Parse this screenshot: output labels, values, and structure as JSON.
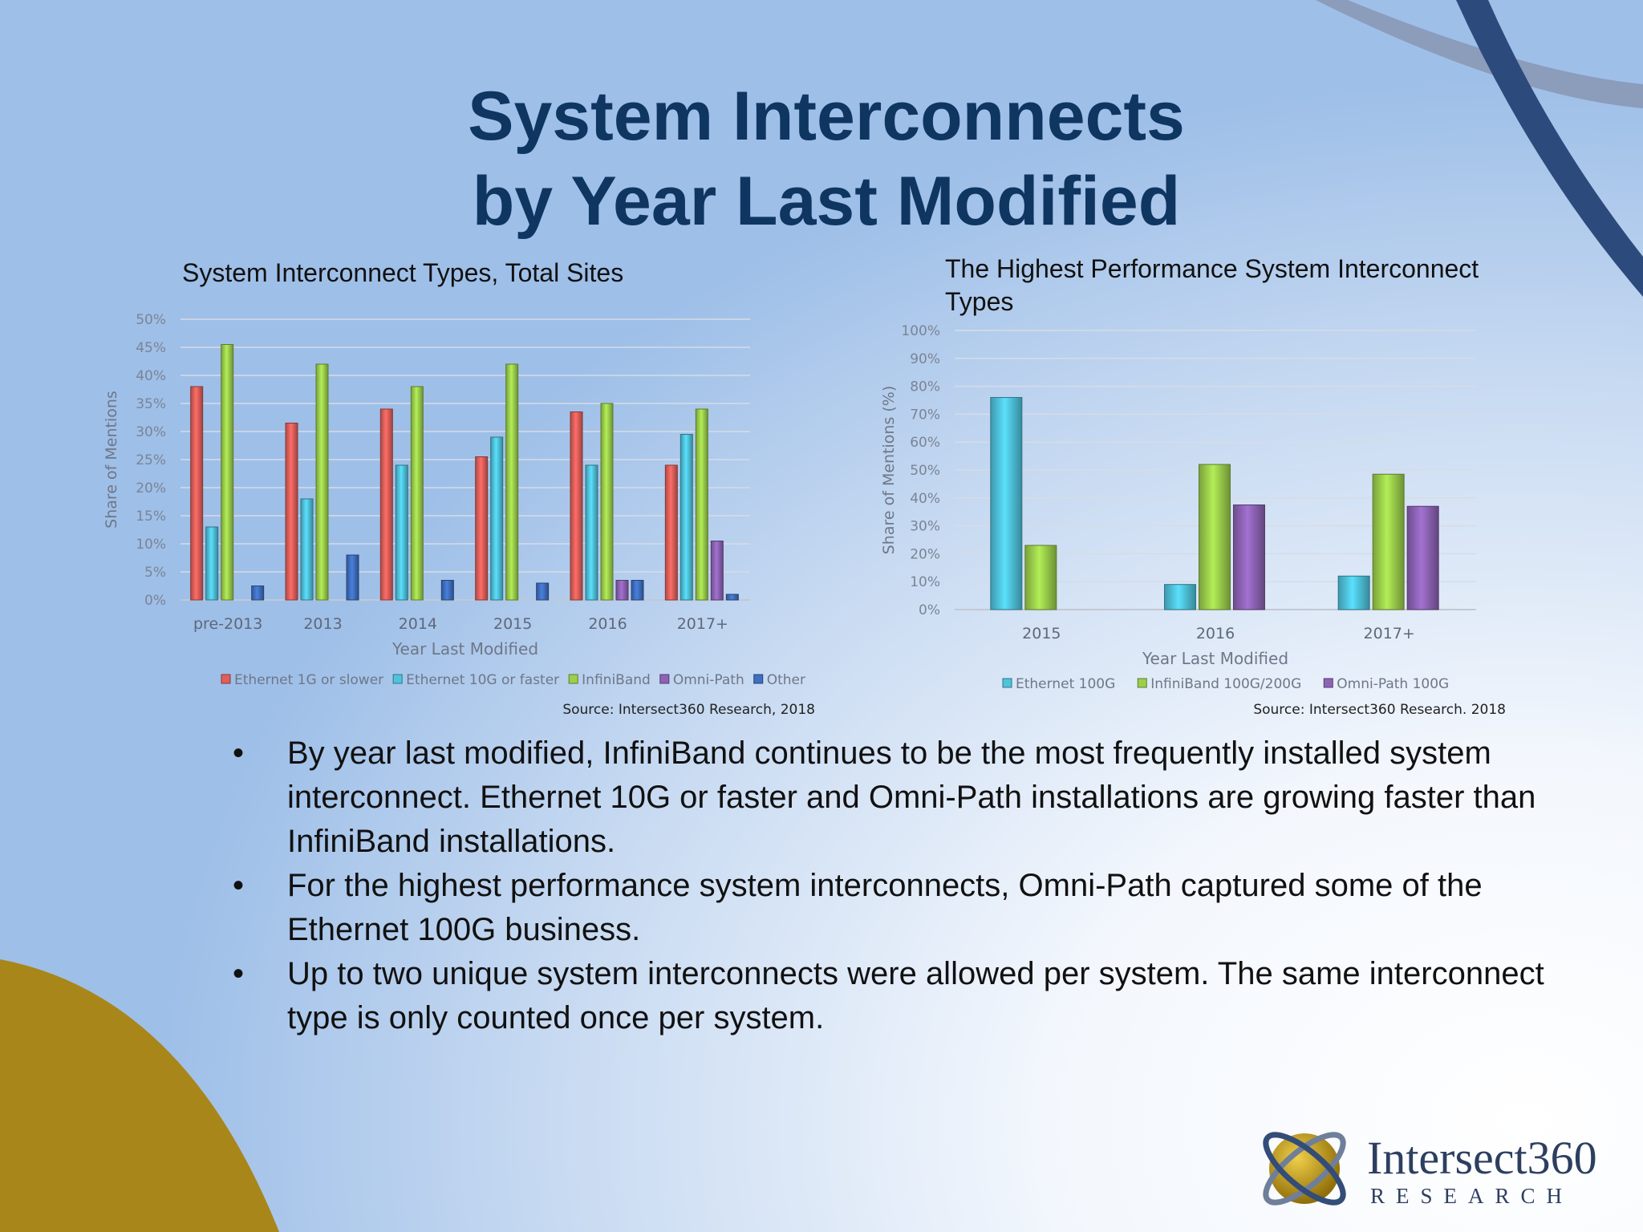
{
  "slide": {
    "title_line1": "System Interconnects",
    "title_line2": "by Year Last Modified",
    "bullet_char": "•",
    "bullets": [
      "By year last modified, InfiniBand continues to be the most frequently installed system interconnect. Ethernet 10G or faster and Omni-Path installations are growing faster than InfiniBand installations.",
      "For the highest performance system interconnects, Omni-Path captured some of the Ethernet 100G business.",
      "Up to two unique system interconnects were allowed per system. The same interconnect type is only counted once per system."
    ]
  },
  "logo": {
    "name": "Intersect360",
    "sub": "RESEARCH"
  },
  "colors": {
    "title": "#0f3561",
    "ethernet_1g": "#e05f5a",
    "ethernet_10g": "#4fc3dc",
    "infiniband": "#9ccf4c",
    "omni_path": "#8e63b6",
    "other": "#3f6fc0"
  },
  "chart_data": [
    {
      "type": "bar",
      "title": "System Interconnect Types, Total Sites",
      "xlabel": "Year Last Modified",
      "ylabel": "Share of Mentions",
      "ylim": [
        0,
        50
      ],
      "yticks": [
        "0%",
        "5%",
        "10%",
        "15%",
        "20%",
        "25%",
        "30%",
        "35%",
        "40%",
        "45%",
        "50%"
      ],
      "categories": [
        "pre-2013",
        "2013",
        "2014",
        "2015",
        "2016",
        "2017+"
      ],
      "series": [
        {
          "name": "Ethernet 1G or slower",
          "color": "#e05f5a",
          "values": [
            38,
            31.5,
            34,
            25.5,
            33.5,
            24
          ]
        },
        {
          "name": "Ethernet 10G or faster",
          "color": "#4fc3dc",
          "values": [
            13,
            18,
            24,
            29,
            24,
            29.5
          ]
        },
        {
          "name": "InfiniBand",
          "color": "#9ccf4c",
          "values": [
            45.5,
            42,
            38,
            42,
            35,
            34
          ]
        },
        {
          "name": "Omni-Path",
          "color": "#8e63b6",
          "values": [
            0,
            0,
            0,
            0,
            3.5,
            10.5
          ]
        },
        {
          "name": "Other",
          "color": "#3f6fc0",
          "values": [
            2.5,
            8,
            3.5,
            3,
            3.5,
            1
          ]
        }
      ],
      "legend": "bottom",
      "grid": true,
      "source": "Source: Intersect360 Research, 2018"
    },
    {
      "type": "bar",
      "title": "The Highest Performance System Interconnect Types",
      "xlabel": "Year Last Modified",
      "ylabel": "Share of Mentions (%)",
      "ylim": [
        0,
        100
      ],
      "yticks": [
        "0%",
        "10%",
        "20%",
        "30%",
        "40%",
        "50%",
        "60%",
        "70%",
        "80%",
        "90%",
        "100%"
      ],
      "categories": [
        "2015",
        "2016",
        "2017+"
      ],
      "series": [
        {
          "name": "Ethernet 100G",
          "color": "#4fc3dc",
          "values": [
            76,
            9,
            12
          ]
        },
        {
          "name": "InfiniBand 100G/200G",
          "color": "#9ccf4c",
          "values": [
            23,
            52,
            48.5
          ]
        },
        {
          "name": "Omni-Path 100G",
          "color": "#8e63b6",
          "values": [
            0,
            37.5,
            37
          ]
        }
      ],
      "legend": "bottom",
      "grid": true,
      "source": "Source: Intersect360 Research. 2018"
    }
  ]
}
